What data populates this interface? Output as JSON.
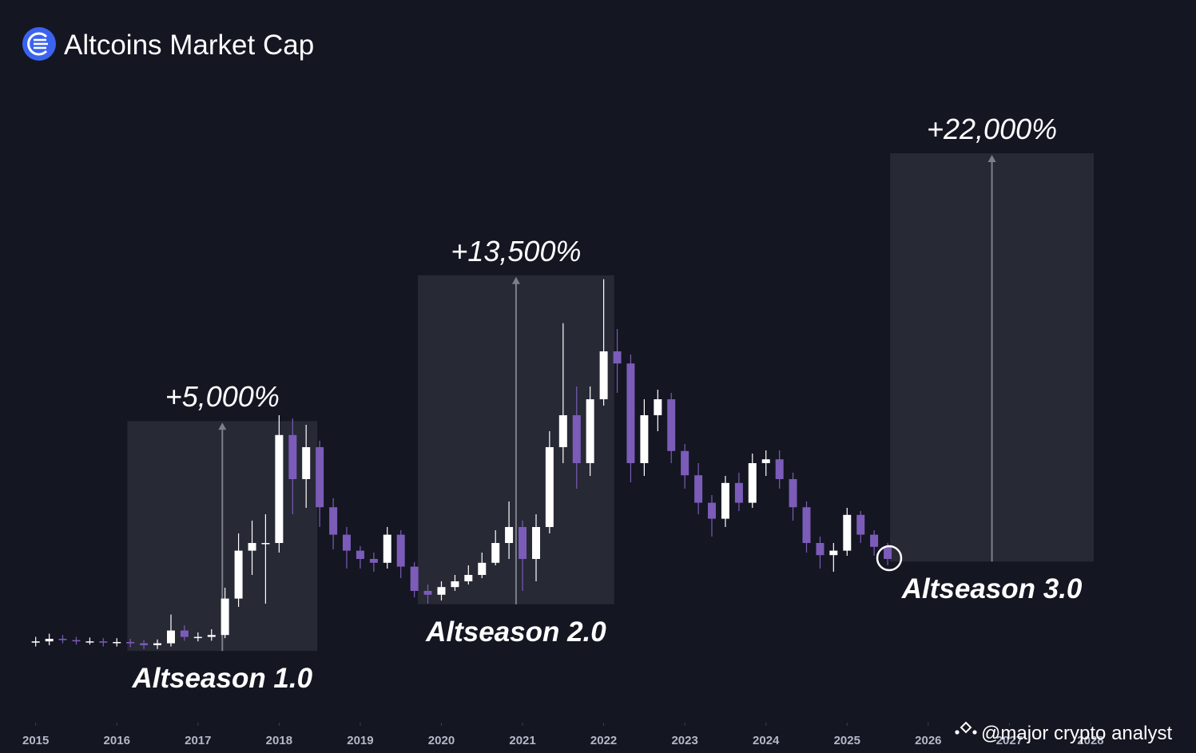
{
  "chart_data": {
    "type": "candlestick",
    "title": "Altcoins Market Cap",
    "watermark": "@major crypto analyst",
    "x": [
      2015.0,
      2015.167,
      2015.333,
      2015.5,
      2015.667,
      2015.833,
      2016.0,
      2016.167,
      2016.333,
      2016.5,
      2016.667,
      2016.833,
      2017.0,
      2017.167,
      2017.333,
      2017.5,
      2017.667,
      2017.833,
      2018.0,
      2018.167,
      2018.333,
      2018.5,
      2018.667,
      2018.833,
      2019.0,
      2019.167,
      2019.333,
      2019.5,
      2019.667,
      2019.833,
      2020.0,
      2020.167,
      2020.333,
      2020.5,
      2020.667,
      2020.833,
      2021.0,
      2021.167,
      2021.333,
      2021.5,
      2021.667,
      2021.833,
      2022.0,
      2022.167,
      2022.333,
      2022.5,
      2022.667,
      2022.833,
      2023.0,
      2023.167,
      2023.333,
      2023.5,
      2023.667,
      2023.833,
      2024.0,
      2024.167,
      2024.333,
      2024.5,
      2024.667,
      2024.833,
      2025.0,
      2025.167,
      2025.333,
      2025.5
    ],
    "open": [
      6.9,
      7.1,
      7.5,
      7.3,
      7.1,
      7.1,
      6.9,
      7.0,
      6.8,
      6.5,
      6.8,
      8.8,
      7.8,
      7.8,
      8.1,
      13.8,
      21.3,
      22.5,
      22.5,
      39.4,
      32.5,
      37.5,
      28.1,
      23.8,
      21.3,
      20.0,
      19.4,
      23.8,
      18.8,
      15.0,
      14.4,
      15.6,
      16.5,
      17.5,
      19.4,
      22.5,
      25.0,
      20.0,
      25.0,
      37.5,
      42.5,
      35.0,
      45.0,
      52.5,
      50.6,
      35.0,
      42.5,
      45.0,
      36.9,
      33.1,
      28.8,
      26.3,
      31.9,
      28.8,
      35.0,
      35.6,
      32.5,
      28.1,
      22.5,
      20.6,
      21.3,
      26.9,
      23.8,
      21.9
    ],
    "high": [
      7.8,
      8.3,
      8.1,
      7.8,
      7.7,
      7.6,
      7.6,
      7.5,
      7.3,
      7.4,
      11.3,
      9.6,
      8.5,
      9.0,
      15.5,
      24.0,
      26.0,
      27.0,
      42.5,
      42.0,
      41.0,
      38.5,
      29.5,
      25.0,
      22.0,
      21.0,
      25.0,
      24.5,
      19.5,
      16.0,
      16.5,
      17.5,
      19.0,
      21.0,
      24.5,
      29.0,
      26.0,
      27.0,
      40.0,
      56.9,
      47.0,
      47.0,
      63.8,
      56.0,
      52.0,
      45.0,
      46.5,
      46.0,
      38.0,
      35.0,
      30.0,
      33.0,
      33.5,
      36.5,
      37.0,
      37.0,
      33.5,
      29.0,
      23.5,
      22.5,
      28.0,
      27.5,
      24.5,
      22.5
    ],
    "low": [
      6.3,
      6.5,
      6.8,
      6.6,
      6.6,
      6.3,
      6.3,
      6.2,
      5.9,
      5.9,
      6.3,
      7.2,
      7.1,
      7.2,
      7.6,
      12.5,
      17.5,
      13.0,
      21.0,
      27.0,
      28.0,
      25.0,
      21.5,
      18.5,
      18.5,
      18.0,
      18.5,
      17.0,
      14.0,
      13.0,
      13.5,
      15.0,
      16.0,
      17.0,
      19.0,
      20.0,
      15.0,
      16.5,
      24.0,
      35.0,
      31.0,
      33.0,
      44.0,
      46.0,
      32.0,
      33.0,
      40.0,
      35.0,
      31.0,
      27.0,
      23.5,
      25.0,
      27.5,
      28.0,
      33.0,
      31.0,
      26.0,
      21.0,
      18.5,
      18.0,
      20.5,
      22.5,
      20.5,
      19.0
    ],
    "close": [
      7.1,
      7.5,
      7.3,
      7.1,
      7.1,
      6.9,
      7.0,
      6.8,
      6.5,
      6.8,
      8.8,
      7.8,
      7.8,
      8.1,
      13.8,
      21.3,
      22.5,
      22.5,
      39.4,
      32.5,
      37.5,
      28.1,
      23.8,
      21.3,
      20.0,
      19.4,
      23.8,
      18.8,
      15.0,
      14.4,
      15.6,
      16.5,
      17.5,
      19.4,
      22.5,
      25.0,
      20.0,
      25.0,
      37.5,
      42.5,
      35.0,
      45.0,
      52.5,
      50.6,
      35.0,
      42.5,
      45.0,
      36.9,
      33.1,
      28.8,
      26.3,
      31.9,
      28.8,
      35.0,
      35.6,
      32.5,
      28.1,
      22.5,
      20.6,
      21.3,
      26.9,
      23.8,
      21.9,
      20.0
    ],
    "up_color": "#ffffff",
    "down_color": "#7b5cb8",
    "xlim": [
      2014.56,
      2029.3
    ],
    "xticks": [
      2015,
      2016,
      2017,
      2018,
      2019,
      2020,
      2021,
      2022,
      2023,
      2024,
      2025,
      2026,
      2027,
      2028
    ],
    "ylim": [
      0,
      100
    ],
    "annotations": [
      {
        "label": "Altseason 1.0",
        "change": "+5,000%",
        "x_range": [
          2016.13,
          2018.47
        ],
        "y_range": [
          5.6,
          41.6
        ]
      },
      {
        "label": "Altseason 2.0",
        "change": "+13,500%",
        "x_range": [
          2019.71,
          2022.13
        ],
        "y_range": [
          12.9,
          64.4
        ]
      },
      {
        "label": "Altseason 3.0",
        "change": "+22,000%",
        "x_range": [
          2025.53,
          2028.04
        ],
        "y_range": [
          19.6,
          83.5
        ]
      }
    ]
  }
}
